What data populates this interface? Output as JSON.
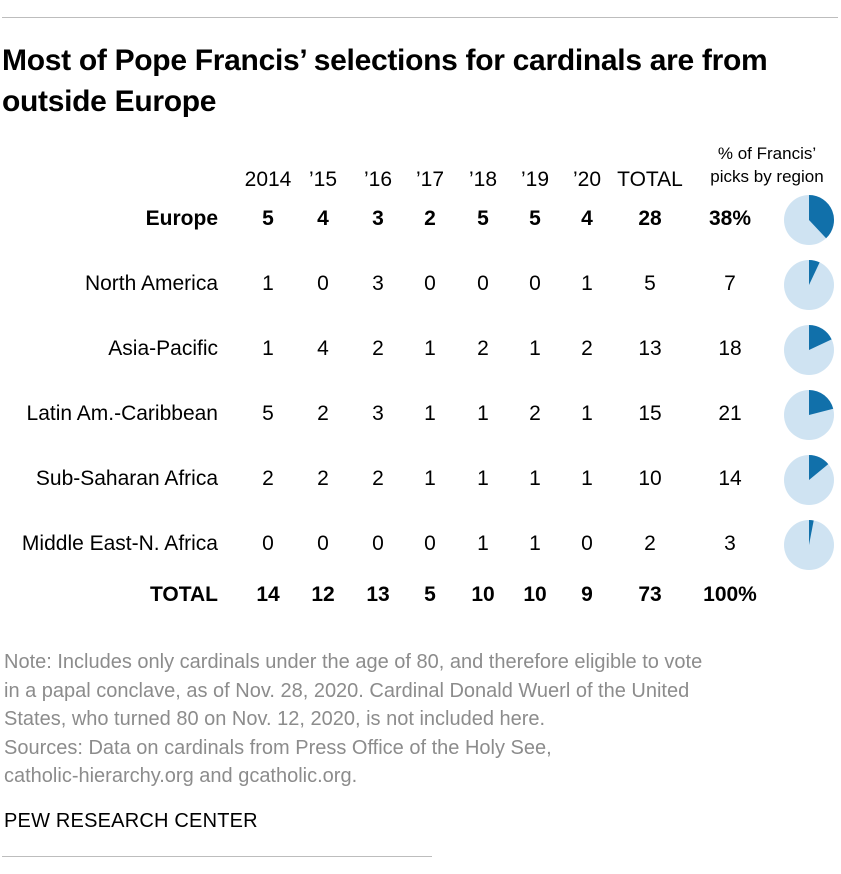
{
  "title": "Most of Pope Francis’ selections for cardinals are from outside Europe",
  "columns": [
    "2014",
    "’15",
    "’16",
    "’17",
    "’18",
    "’19",
    "’20",
    "TOTAL"
  ],
  "pct_header": [
    "% of Francis’",
    "picks by region"
  ],
  "rows": [
    {
      "label": "Europe",
      "values": [
        "5",
        "4",
        "3",
        "2",
        "5",
        "5",
        "4",
        "28"
      ],
      "pct": "38%",
      "bold": true
    },
    {
      "label": "North America",
      "values": [
        "1",
        "0",
        "3",
        "0",
        "0",
        "0",
        "1",
        "5"
      ],
      "pct": "7",
      "bold": false
    },
    {
      "label": "Asia-Pacific",
      "values": [
        "1",
        "4",
        "2",
        "1",
        "2",
        "1",
        "2",
        "13"
      ],
      "pct": "18",
      "bold": false
    },
    {
      "label": "Latin Am.-Caribbean",
      "values": [
        "5",
        "2",
        "3",
        "1",
        "1",
        "2",
        "1",
        "15"
      ],
      "pct": "21",
      "bold": false
    },
    {
      "label": "Sub-Saharan Africa",
      "values": [
        "2",
        "2",
        "2",
        "1",
        "1",
        "1",
        "1",
        "10"
      ],
      "pct": "14",
      "bold": false
    },
    {
      "label": "Middle East-N. Africa",
      "values": [
        "0",
        "0",
        "0",
        "0",
        "1",
        "1",
        "0",
        "2"
      ],
      "pct": "3",
      "bold": false
    }
  ],
  "total_row": {
    "label": "TOTAL",
    "values": [
      "14",
      "12",
      "13",
      "5",
      "10",
      "10",
      "9",
      "73"
    ],
    "pct": "100%"
  },
  "colors": {
    "slice": "#1170aa",
    "rest": "#cfe3f2",
    "note": "#8c8c8c"
  },
  "notes": [
    "Note: Includes only cardinals under the age of 80, and therefore eligible to vote",
    "in a papal conclave, as of Nov. 28, 2020. Cardinal Donald Wuerl of the United",
    "States, who turned 80 on Nov. 12, 2020, is not included here.",
    "Sources: Data on cardinals from Press Office of the Holy See,",
    "catholic-hierarchy.org and gcatholic.org."
  ],
  "credit": "PEW RESEARCH CENTER",
  "chart_data": {
    "type": "table",
    "title": "Most of Pope Francis’ selections for cardinals are from outside Europe",
    "categories": [
      "2014",
      "’15",
      "’16",
      "’17",
      "’18",
      "’19",
      "’20",
      "TOTAL"
    ],
    "series": [
      {
        "name": "Europe",
        "values": [
          5,
          4,
          3,
          2,
          5,
          5,
          4,
          28
        ],
        "share_pct": 38
      },
      {
        "name": "North America",
        "values": [
          1,
          0,
          3,
          0,
          0,
          0,
          1,
          5
        ],
        "share_pct": 7
      },
      {
        "name": "Asia-Pacific",
        "values": [
          1,
          4,
          2,
          1,
          2,
          1,
          2,
          13
        ],
        "share_pct": 18
      },
      {
        "name": "Latin Am.-Caribbean",
        "values": [
          5,
          2,
          3,
          1,
          1,
          2,
          1,
          15
        ],
        "share_pct": 21
      },
      {
        "name": "Sub-Saharan Africa",
        "values": [
          2,
          2,
          2,
          1,
          1,
          1,
          1,
          10
        ],
        "share_pct": 14
      },
      {
        "name": "Middle East-N. Africa",
        "values": [
          0,
          0,
          0,
          0,
          1,
          1,
          0,
          2
        ],
        "share_pct": 3
      },
      {
        "name": "TOTAL",
        "values": [
          14,
          12,
          13,
          5,
          10,
          10,
          9,
          73
        ],
        "share_pct": 100
      }
    ]
  }
}
